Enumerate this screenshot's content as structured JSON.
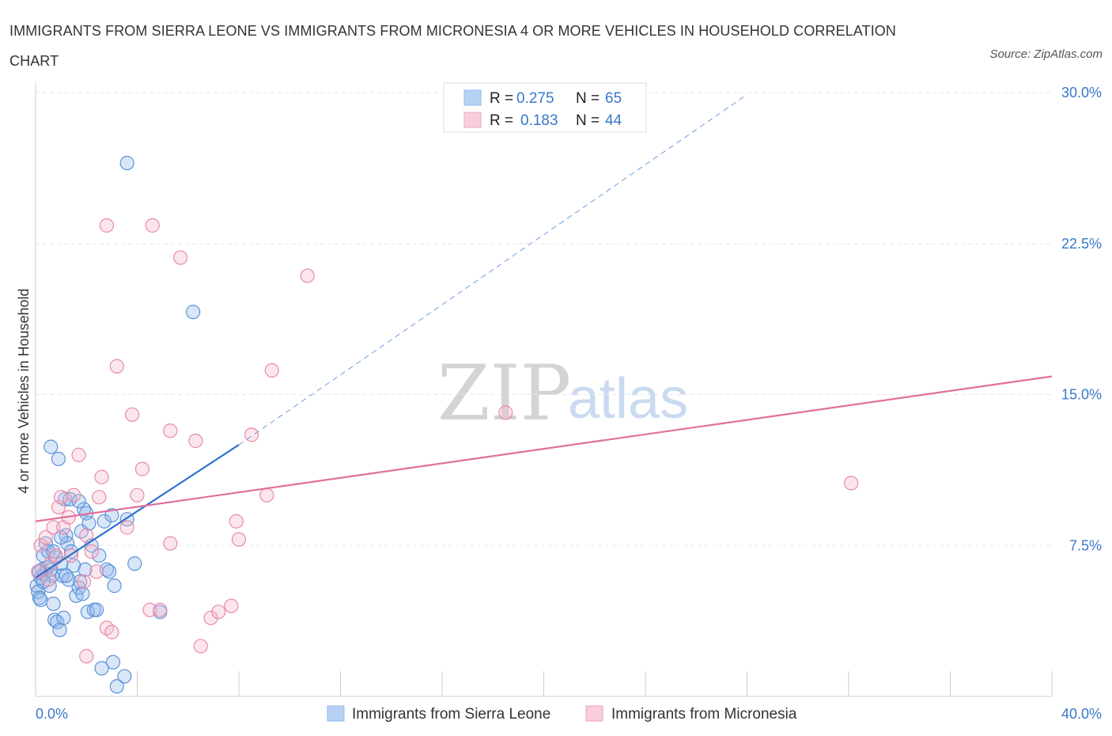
{
  "chart_data": {
    "type": "scatter",
    "title": "IMMIGRANTS FROM SIERRA LEONE VS IMMIGRANTS FROM MICRONESIA 4 OR MORE VEHICLES IN HOUSEHOLD CORRELATION CHART",
    "source": "Source: ZipAtlas.com",
    "xlabel": "",
    "ylabel": "4 or more Vehicles in Household",
    "xlim": [
      0,
      40
    ],
    "ylim": [
      0,
      30
    ],
    "x_ticks": [
      "0.0%",
      "40.0%"
    ],
    "y_ticks": [
      {
        "value": 7.5,
        "label": "7.5%"
      },
      {
        "value": 15,
        "label": "15.0%"
      },
      {
        "value": 22.5,
        "label": "22.5%"
      },
      {
        "value": 30,
        "label": "30.0%"
      }
    ],
    "legend_stats": [
      {
        "r_label": "R =",
        "r_value": "0.275",
        "n_label": "N =",
        "n_value": "65"
      },
      {
        "r_label": "R =",
        "r_value": "0.183",
        "n_label": "N =",
        "n_value": "44"
      }
    ],
    "watermark": {
      "zip": "ZIP",
      "atlas": "atlas"
    },
    "series": [
      {
        "name": "Immigrants from Sierra Leone",
        "color": "#8fb8ec",
        "stroke": "#5b93d8",
        "line_color": "#2f72d0",
        "trend": {
          "x0": 0,
          "y0": 5.9,
          "x1": 8.0,
          "y1": 12.5,
          "dashed_to_x": 28.0,
          "dashed_to_y": 29.9
        },
        "points": [
          [
            0.05,
            5.5
          ],
          [
            0.1,
            5.2
          ],
          [
            0.15,
            4.9
          ],
          [
            0.2,
            5.9
          ],
          [
            0.25,
            6.3
          ],
          [
            0.3,
            7.0
          ],
          [
            0.35,
            6.1
          ],
          [
            0.4,
            7.6
          ],
          [
            0.45,
            6.4
          ],
          [
            0.5,
            7.2
          ],
          [
            0.55,
            5.5
          ],
          [
            0.6,
            6.3
          ],
          [
            0.65,
            6.0
          ],
          [
            0.7,
            4.6
          ],
          [
            0.75,
            3.8
          ],
          [
            0.8,
            6.9
          ],
          [
            0.85,
            3.7
          ],
          [
            0.9,
            11.8
          ],
          [
            0.95,
            3.3
          ],
          [
            1.0,
            6.6
          ],
          [
            1.05,
            6.0
          ],
          [
            1.1,
            3.9
          ],
          [
            1.15,
            9.8
          ],
          [
            1.2,
            8.0
          ],
          [
            1.25,
            7.6
          ],
          [
            1.3,
            5.8
          ],
          [
            1.35,
            9.8
          ],
          [
            1.4,
            7.2
          ],
          [
            1.5,
            6.5
          ],
          [
            1.6,
            5.0
          ],
          [
            1.7,
            5.4
          ],
          [
            1.75,
            5.7
          ],
          [
            1.8,
            8.2
          ],
          [
            1.85,
            5.1
          ],
          [
            1.9,
            9.3
          ],
          [
            1.95,
            6.3
          ],
          [
            2.0,
            9.1
          ],
          [
            2.05,
            4.2
          ],
          [
            2.1,
            8.6
          ],
          [
            2.2,
            7.5
          ],
          [
            2.3,
            4.3
          ],
          [
            2.5,
            7.0
          ],
          [
            2.6,
            1.4
          ],
          [
            2.7,
            8.7
          ],
          [
            2.8,
            6.3
          ],
          [
            2.9,
            6.2
          ],
          [
            3.0,
            9.0
          ],
          [
            3.05,
            1.7
          ],
          [
            3.1,
            5.5
          ],
          [
            3.5,
            1.0
          ],
          [
            3.2,
            0.5
          ],
          [
            0.6,
            12.4
          ],
          [
            3.6,
            26.5
          ],
          [
            3.6,
            8.8
          ],
          [
            3.9,
            6.6
          ],
          [
            4.9,
            4.2
          ],
          [
            6.2,
            19.1
          ],
          [
            0.2,
            4.8
          ],
          [
            0.3,
            5.7
          ],
          [
            0.7,
            7.2
          ],
          [
            1.0,
            7.9
          ],
          [
            1.2,
            6.0
          ],
          [
            1.7,
            9.7
          ],
          [
            2.4,
            4.3
          ],
          [
            0.15,
            6.2
          ]
        ]
      },
      {
        "name": "Immigrants from Micronesia",
        "color": "#f5b7cb",
        "stroke": "#e88aa8",
        "line_color": "#e0709a",
        "trend": {
          "x0": 0,
          "y0": 8.7,
          "x1": 40,
          "y1": 15.9
        },
        "points": [
          [
            0.1,
            6.2
          ],
          [
            0.2,
            7.5
          ],
          [
            0.4,
            7.9
          ],
          [
            0.5,
            5.8
          ],
          [
            0.6,
            6.6
          ],
          [
            0.7,
            8.4
          ],
          [
            0.8,
            7.0
          ],
          [
            0.9,
            9.4
          ],
          [
            1.0,
            9.9
          ],
          [
            1.1,
            8.4
          ],
          [
            1.3,
            8.9
          ],
          [
            1.4,
            7.0
          ],
          [
            1.5,
            10.0
          ],
          [
            1.7,
            12.0
          ],
          [
            1.9,
            5.7
          ],
          [
            2.0,
            8.0
          ],
          [
            2.2,
            7.2
          ],
          [
            2.4,
            6.2
          ],
          [
            2.5,
            9.9
          ],
          [
            2.6,
            10.9
          ],
          [
            2.8,
            3.4
          ],
          [
            3.0,
            3.2
          ],
          [
            2.0,
            2.0
          ],
          [
            2.8,
            23.4
          ],
          [
            3.2,
            16.4
          ],
          [
            3.6,
            8.4
          ],
          [
            3.8,
            14.0
          ],
          [
            4.0,
            10.0
          ],
          [
            4.2,
            11.3
          ],
          [
            4.5,
            4.3
          ],
          [
            4.9,
            4.3
          ],
          [
            5.3,
            7.6
          ],
          [
            5.3,
            13.2
          ],
          [
            5.7,
            21.8
          ],
          [
            6.3,
            12.7
          ],
          [
            6.5,
            2.5
          ],
          [
            6.9,
            3.9
          ],
          [
            7.2,
            4.2
          ],
          [
            7.9,
            8.7
          ],
          [
            8.0,
            7.8
          ],
          [
            8.5,
            13.0
          ],
          [
            9.1,
            10.0
          ],
          [
            9.3,
            16.2
          ],
          [
            10.7,
            20.9
          ]
        ]
      }
    ],
    "extra_points_micronesia_far": [
      [
        18.5,
        14.1
      ],
      [
        32.1,
        10.6
      ],
      [
        4.6,
        23.4
      ],
      [
        7.7,
        4.5
      ]
    ]
  },
  "bottom_legend": [
    {
      "label": "Immigrants from Sierra Leone"
    },
    {
      "label": "Immigrants from Micronesia"
    }
  ]
}
